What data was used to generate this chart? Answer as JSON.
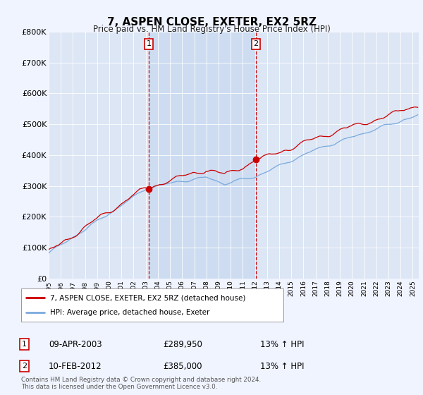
{
  "title": "7, ASPEN CLOSE, EXETER, EX2 5RZ",
  "subtitle": "Price paid vs. HM Land Registry's House Price Index (HPI)",
  "ylim": [
    0,
    800000
  ],
  "yticks": [
    0,
    100000,
    200000,
    300000,
    400000,
    500000,
    600000,
    700000,
    800000
  ],
  "ytick_labels": [
    "£0",
    "£100K",
    "£200K",
    "£300K",
    "£400K",
    "£500K",
    "£600K",
    "£700K",
    "£800K"
  ],
  "legend_line1": "7, ASPEN CLOSE, EXETER, EX2 5RZ (detached house)",
  "legend_line2": "HPI: Average price, detached house, Exeter",
  "sale1_date": "09-APR-2003",
  "sale1_price": "£289,950",
  "sale1_hpi": "13% ↑ HPI",
  "sale2_date": "10-FEB-2012",
  "sale2_price": "£385,000",
  "sale2_hpi": "13% ↑ HPI",
  "footer": "Contains HM Land Registry data © Crown copyright and database right 2024.\nThis data is licensed under the Open Government Licence v3.0.",
  "background_color": "#f0f4ff",
  "plot_bg_color": "#dce6f5",
  "shade_color": "#c8d8f0",
  "red_color": "#cc0000",
  "blue_color": "#7aaadd",
  "vline_color": "#cc0000",
  "grid_color": "#ffffff"
}
